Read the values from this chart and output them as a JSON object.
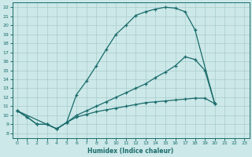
{
  "xlabel": "Humidex (Indice chaleur)",
  "background_color": "#cce8e8",
  "grid_color": "#aacccc",
  "line_color": "#1a6b6b",
  "xlim": [
    -0.5,
    23.5
  ],
  "ylim": [
    7.5,
    22.5
  ],
  "xticks": [
    0,
    1,
    2,
    3,
    4,
    5,
    6,
    7,
    8,
    9,
    10,
    11,
    12,
    13,
    14,
    15,
    16,
    17,
    18,
    19,
    20,
    21,
    22,
    23
  ],
  "yticks": [
    8,
    9,
    10,
    11,
    12,
    13,
    14,
    15,
    16,
    17,
    18,
    19,
    20,
    21,
    22
  ],
  "curve1_x": [
    0,
    1,
    2,
    3,
    4,
    5,
    6,
    7,
    8,
    9,
    10,
    11,
    12,
    13,
    14,
    15,
    16,
    17,
    18,
    20
  ],
  "curve1_y": [
    10.5,
    9.8,
    9.0,
    9.0,
    8.5,
    9.2,
    12.3,
    13.8,
    15.5,
    17.3,
    19.0,
    20.0,
    21.1,
    21.5,
    21.8,
    22.0,
    21.9,
    21.5,
    19.5,
    11.3
  ],
  "curve2_x": [
    0,
    3,
    4,
    5,
    6,
    7,
    8,
    9,
    10,
    11,
    12,
    13,
    14,
    15,
    16,
    17,
    18,
    19,
    20
  ],
  "curve2_y": [
    10.5,
    9.0,
    8.5,
    9.2,
    10.0,
    10.5,
    11.0,
    11.5,
    12.0,
    12.5,
    13.0,
    13.5,
    14.2,
    14.8,
    15.5,
    16.5,
    16.2,
    15.0,
    11.3
  ],
  "curve3_x": [
    0,
    1,
    2,
    3,
    4,
    5,
    6,
    7,
    8,
    9,
    10,
    11,
    12,
    13,
    14,
    15,
    16,
    17,
    18,
    19,
    20
  ],
  "curve3_y": [
    10.5,
    9.8,
    9.0,
    9.0,
    8.5,
    9.2,
    9.8,
    10.1,
    10.4,
    10.6,
    10.8,
    11.0,
    11.2,
    11.4,
    11.5,
    11.6,
    11.7,
    11.8,
    11.9,
    11.9,
    11.3
  ]
}
